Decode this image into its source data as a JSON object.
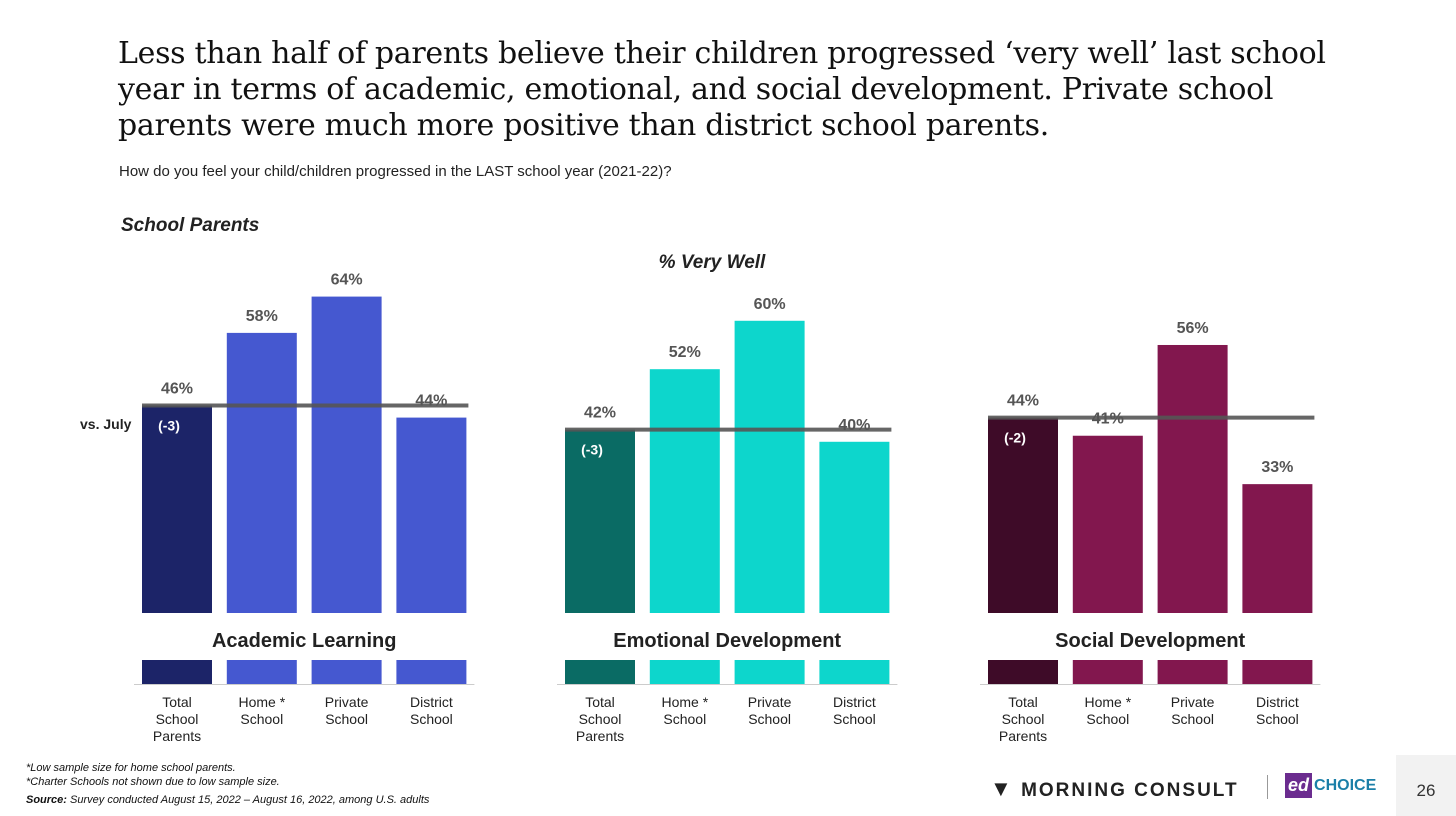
{
  "title": "Less than half of parents believe their children progressed ‘very well’ last school year in terms of academic, emotional, and social development. Private school parents were much more positive than district school parents.",
  "question": "How do you feel your child/children progressed in the LAST school year (2021-22)?",
  "group_label": "School Parents",
  "vs_july_label": "vs. July",
  "footnotes": [
    "*Low sample size for home school parents.",
    "*Charter Schools not shown due to low sample size."
  ],
  "source_label": "Source:",
  "source_text": " Survey conducted August 15, 2022 – August 16, 2022, among U.S. adults",
  "logos": {
    "morning_consult": "MORNING CONSULT",
    "edchoice_ed": "ed",
    "edchoice_choice": "CHOICE"
  },
  "page_number": "26",
  "chart_data": {
    "type": "bar",
    "title": "% Very Well",
    "ylim": [
      11.7,
      100
    ],
    "categories": [
      "Total School Parents",
      "Home * School",
      "Private School",
      "District School"
    ],
    "category_lines": [
      [
        "Total",
        "School",
        "Parents"
      ],
      [
        "Home *",
        "School"
      ],
      [
        "Private",
        "School"
      ],
      [
        "District",
        "School"
      ]
    ],
    "panels": [
      {
        "name": "Academic Learning",
        "values": [
          46,
          58,
          64,
          44
        ],
        "vs_july": "(-3)",
        "colors": {
          "total": "#1c2468",
          "other": "#4558d0"
        }
      },
      {
        "name": "Emotional Development",
        "values": [
          42,
          52,
          60,
          40
        ],
        "vs_july": "(-3)",
        "colors": {
          "total": "#0a6b64",
          "other": "#0dd6cc"
        }
      },
      {
        "name": "Social Development",
        "values": [
          44,
          41,
          56,
          33
        ],
        "vs_july": "(-2)",
        "colors": {
          "total": "#3e0b28",
          "other": "#82174e"
        }
      }
    ],
    "reference_line": "Total School Parents value per panel"
  }
}
